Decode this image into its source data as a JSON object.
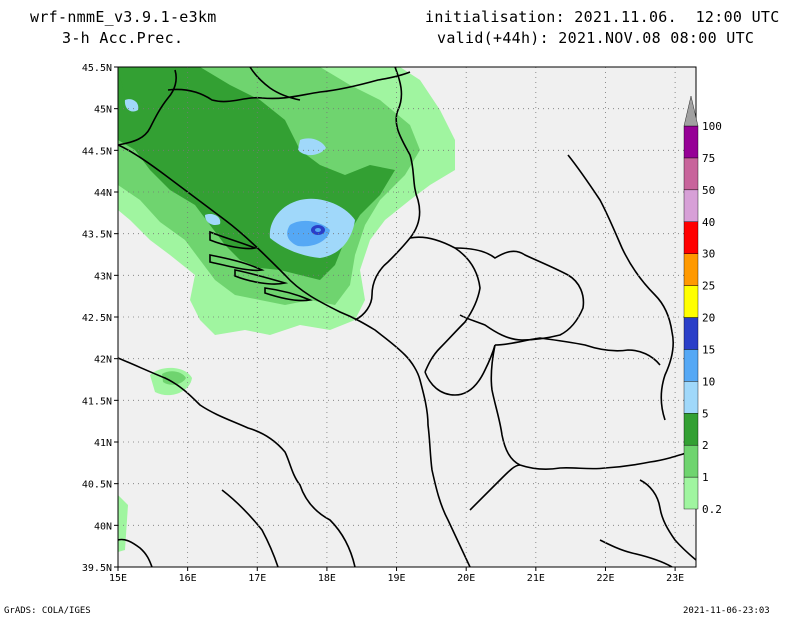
{
  "header": {
    "model": "wrf-nmmE_v3.9.1-e3km",
    "field": "3-h Acc.Prec.",
    "init": "initialisation: 2021.11.06.  12:00 UTC",
    "valid": "valid(+44h): 2021.NOV.08 08:00 UTC"
  },
  "map": {
    "lat_labels": [
      "45.5N",
      "45N",
      "44.5N",
      "44N",
      "43.5N",
      "43N",
      "42.5N",
      "42N",
      "41.5N",
      "41N",
      "40.5N",
      "40N",
      "39.5N"
    ],
    "lon_labels": [
      "15E",
      "16E",
      "17E",
      "18E",
      "19E",
      "20E",
      "21E",
      "22E",
      "23E"
    ],
    "lat_values": [
      45.5,
      45,
      44.5,
      44,
      43.5,
      43,
      42.5,
      42,
      41.5,
      41,
      40.5,
      40,
      39.5
    ],
    "lon_values": [
      15,
      16,
      17,
      18,
      19,
      20,
      21,
      22,
      23
    ],
    "background_color": "#f0f0f0",
    "grid": "dotted"
  },
  "legend": {
    "levels": [
      {
        "label": "0.2",
        "color": "#a0f5a0"
      },
      {
        "label": "1",
        "color": "#6fd46f"
      },
      {
        "label": "2",
        "color": "#33a033"
      },
      {
        "label": "5",
        "color": "#a0d8fa"
      },
      {
        "label": "10",
        "color": "#55a8f5"
      },
      {
        "label": "15",
        "color": "#2a3fc8"
      },
      {
        "label": "20",
        "color": "#ffff00"
      },
      {
        "label": "25",
        "color": "#ff9900"
      },
      {
        "label": "30",
        "color": "#ff0000"
      },
      {
        "label": "40",
        "color": "#d7a0d7"
      },
      {
        "label": "50",
        "color": "#c8649b"
      },
      {
        "label": "75",
        "color": "#960096"
      },
      {
        "label": "100",
        "color": "#a0a0a0"
      }
    ]
  },
  "footer": {
    "left": "GrADS: COLA/IGES",
    "right": "2021-11-06-23:03"
  }
}
